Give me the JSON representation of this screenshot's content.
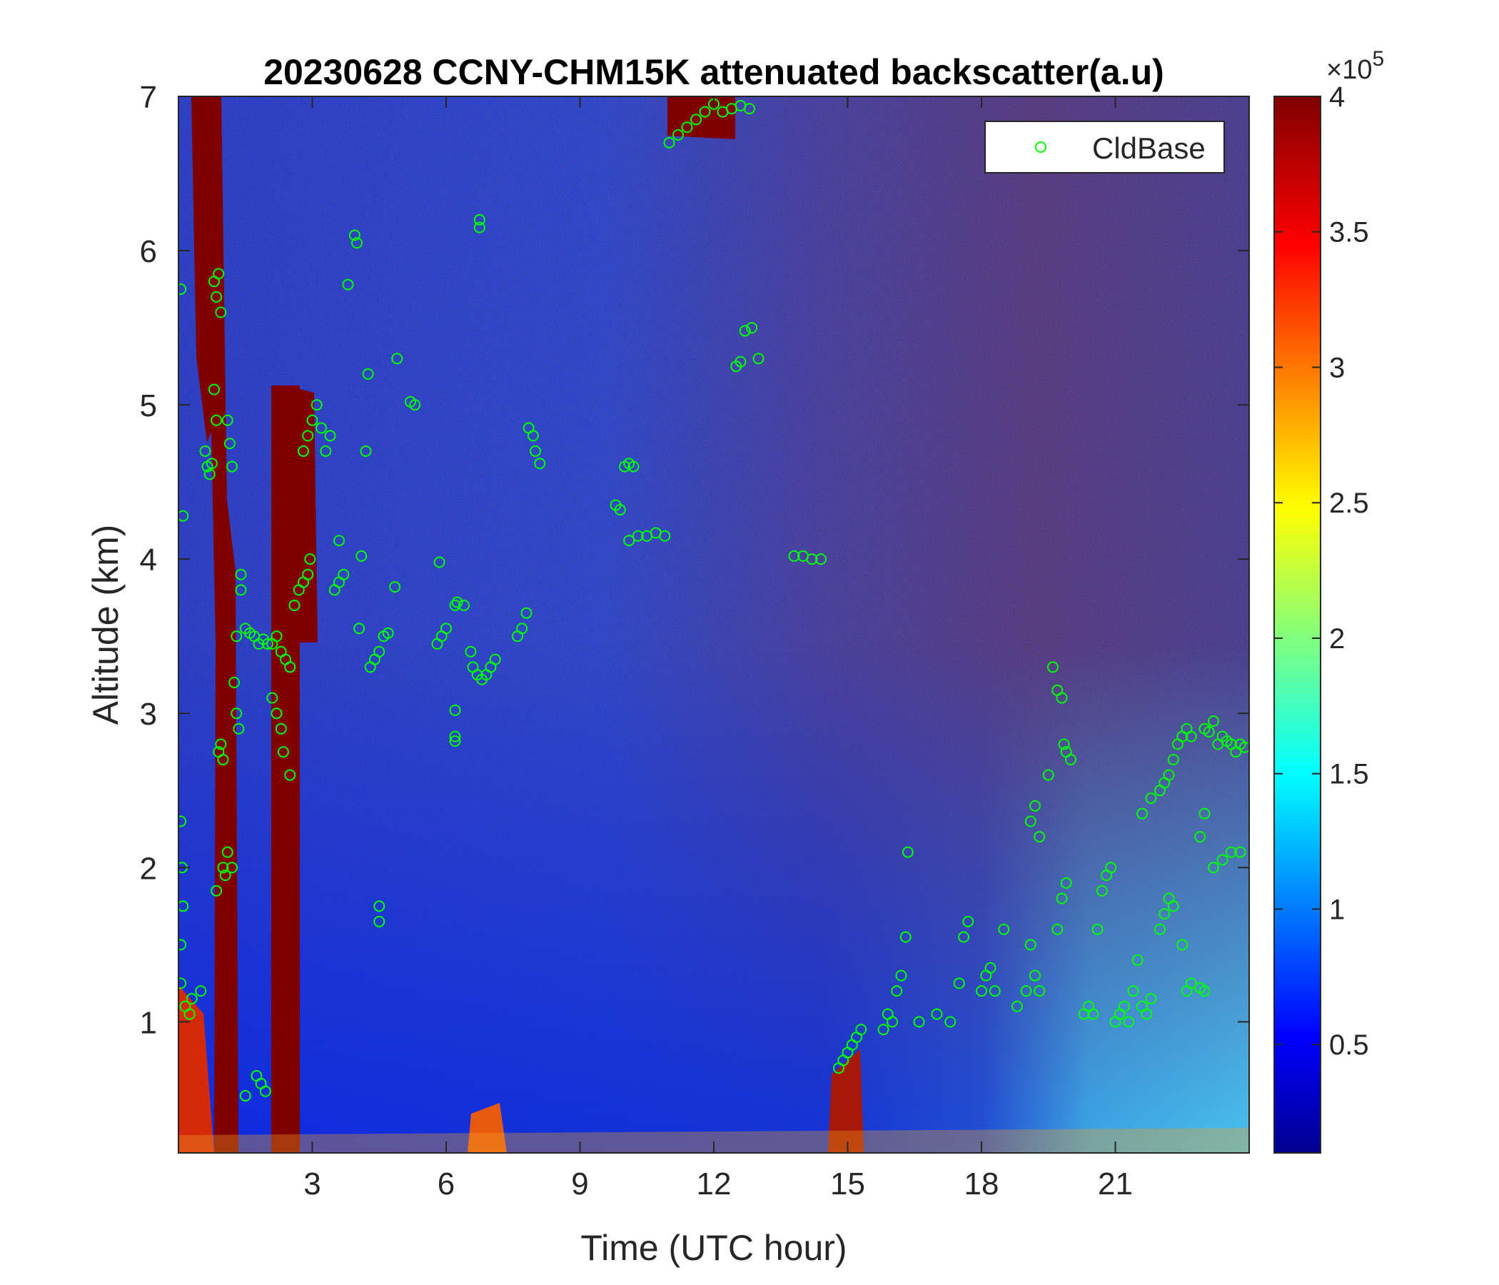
{
  "chart_data": {
    "type": "heatmap",
    "title": "20230628 CCNY-CHM15K attenuated backscatter(a.u)",
    "xlabel": "Time (UTC hour)",
    "ylabel": "Altitude (km)",
    "xlim": [
      0,
      24
    ],
    "ylim": [
      0.15,
      7
    ],
    "xticks": [
      3,
      6,
      9,
      12,
      15,
      18,
      21
    ],
    "xtick_labels": [
      "3",
      "6",
      "9",
      "12",
      "15",
      "18",
      "21"
    ],
    "yticks": [
      1,
      2,
      3,
      4,
      5,
      6,
      7
    ],
    "ytick_labels": [
      "1",
      "2",
      "3",
      "4",
      "5",
      "6",
      "7"
    ],
    "colorbar": {
      "colormap": "jet",
      "range": [
        0.1,
        4
      ],
      "ticks": [
        0.5,
        1,
        1.5,
        2,
        2.5,
        3,
        3.5,
        4
      ],
      "tick_labels": [
        "0.5",
        "1",
        "1.5",
        "2",
        "2.5",
        "3",
        "3.5",
        "4"
      ],
      "exponent_label": "×10",
      "exponent_power": "5"
    },
    "legend": {
      "position": "top-right",
      "entries": [
        {
          "name": "CldBase",
          "marker": "circle",
          "color": "#00ff00"
        }
      ]
    },
    "grid": false,
    "series": [
      {
        "name": "CldBase",
        "type": "scatter",
        "points": [
          [
            0.05,
            5.75
          ],
          [
            0.1,
            4.28
          ],
          [
            0.05,
            2.3
          ],
          [
            0.08,
            2.0
          ],
          [
            0.1,
            1.75
          ],
          [
            0.05,
            1.5
          ],
          [
            0.05,
            1.25
          ],
          [
            0.15,
            1.1
          ],
          [
            0.25,
            1.05
          ],
          [
            0.3,
            1.15
          ],
          [
            0.5,
            1.2
          ],
          [
            0.65,
            4.6
          ],
          [
            0.7,
            4.55
          ],
          [
            0.75,
            4.62
          ],
          [
            0.6,
            4.7
          ],
          [
            0.8,
            5.1
          ],
          [
            0.85,
            4.9
          ],
          [
            0.8,
            5.8
          ],
          [
            0.85,
            5.7
          ],
          [
            0.9,
            5.85
          ],
          [
            0.95,
            5.6
          ],
          [
            0.9,
            2.75
          ],
          [
            0.95,
            2.8
          ],
          [
            1.0,
            2.7
          ],
          [
            0.85,
            1.85
          ],
          [
            1.0,
            2.0
          ],
          [
            1.1,
            2.1
          ],
          [
            1.2,
            2.0
          ],
          [
            1.05,
            1.95
          ],
          [
            1.1,
            4.9
          ],
          [
            1.15,
            4.75
          ],
          [
            1.2,
            4.6
          ],
          [
            1.3,
            3.5
          ],
          [
            1.25,
            3.2
          ],
          [
            1.3,
            3.0
          ],
          [
            1.35,
            2.9
          ],
          [
            1.4,
            3.9
          ],
          [
            1.4,
            3.8
          ],
          [
            1.5,
            3.55
          ],
          [
            1.6,
            3.52
          ],
          [
            1.7,
            3.5
          ],
          [
            1.8,
            3.45
          ],
          [
            1.9,
            3.48
          ],
          [
            2.0,
            3.45
          ],
          [
            2.1,
            3.45
          ],
          [
            2.2,
            3.5
          ],
          [
            2.3,
            3.4
          ],
          [
            2.4,
            3.35
          ],
          [
            2.5,
            3.3
          ],
          [
            2.6,
            3.7
          ],
          [
            2.7,
            3.8
          ],
          [
            2.8,
            3.85
          ],
          [
            2.9,
            3.9
          ],
          [
            2.95,
            4.0
          ],
          [
            2.1,
            3.1
          ],
          [
            2.2,
            3.0
          ],
          [
            2.3,
            2.9
          ],
          [
            2.35,
            2.75
          ],
          [
            2.5,
            2.6
          ],
          [
            1.75,
            0.65
          ],
          [
            1.85,
            0.6
          ],
          [
            1.95,
            0.55
          ],
          [
            1.5,
            0.52
          ],
          [
            2.8,
            4.7
          ],
          [
            2.9,
            4.8
          ],
          [
            3.0,
            4.9
          ],
          [
            3.1,
            5.0
          ],
          [
            3.2,
            4.85
          ],
          [
            3.3,
            4.7
          ],
          [
            3.4,
            4.8
          ],
          [
            3.5,
            3.8
          ],
          [
            3.6,
            3.85
          ],
          [
            3.7,
            3.9
          ],
          [
            3.6,
            4.12
          ],
          [
            3.8,
            5.78
          ],
          [
            3.95,
            6.1
          ],
          [
            4.0,
            6.05
          ],
          [
            4.1,
            4.02
          ],
          [
            4.2,
            4.7
          ],
          [
            4.25,
            5.2
          ],
          [
            4.05,
            3.55
          ],
          [
            4.3,
            3.3
          ],
          [
            4.4,
            3.35
          ],
          [
            4.5,
            3.4
          ],
          [
            4.6,
            3.5
          ],
          [
            4.7,
            3.52
          ],
          [
            4.5,
            1.75
          ],
          [
            4.5,
            1.65
          ],
          [
            4.9,
            5.3
          ],
          [
            4.85,
            3.82
          ],
          [
            5.2,
            5.02
          ],
          [
            5.3,
            5.0
          ],
          [
            5.8,
            3.45
          ],
          [
            5.9,
            3.5
          ],
          [
            6.0,
            3.55
          ],
          [
            5.85,
            3.98
          ],
          [
            6.2,
            3.7
          ],
          [
            6.25,
            3.72
          ],
          [
            6.4,
            3.7
          ],
          [
            6.2,
            3.02
          ],
          [
            6.2,
            2.85
          ],
          [
            6.2,
            2.82
          ],
          [
            6.55,
            3.4
          ],
          [
            6.6,
            3.3
          ],
          [
            6.7,
            3.25
          ],
          [
            6.8,
            3.22
          ],
          [
            6.9,
            3.25
          ],
          [
            7.0,
            3.3
          ],
          [
            7.1,
            3.35
          ],
          [
            6.75,
            6.2
          ],
          [
            6.75,
            6.15
          ],
          [
            7.6,
            3.5
          ],
          [
            7.7,
            3.55
          ],
          [
            7.8,
            3.65
          ],
          [
            7.85,
            4.85
          ],
          [
            7.95,
            4.8
          ],
          [
            8.0,
            4.7
          ],
          [
            8.1,
            4.62
          ],
          [
            9.8,
            4.35
          ],
          [
            9.9,
            4.32
          ],
          [
            10.0,
            4.6
          ],
          [
            10.1,
            4.62
          ],
          [
            10.2,
            4.6
          ],
          [
            10.1,
            4.12
          ],
          [
            10.3,
            4.15
          ],
          [
            10.5,
            4.15
          ],
          [
            10.7,
            4.17
          ],
          [
            10.9,
            4.15
          ],
          [
            11.0,
            6.7
          ],
          [
            11.2,
            6.75
          ],
          [
            11.4,
            6.8
          ],
          [
            11.6,
            6.85
          ],
          [
            11.8,
            6.9
          ],
          [
            12.0,
            6.95
          ],
          [
            12.2,
            6.9
          ],
          [
            12.4,
            6.92
          ],
          [
            12.6,
            6.94
          ],
          [
            12.8,
            6.92
          ],
          [
            12.5,
            5.25
          ],
          [
            12.6,
            5.28
          ],
          [
            12.7,
            5.48
          ],
          [
            12.85,
            5.5
          ],
          [
            13.0,
            5.3
          ],
          [
            13.8,
            4.02
          ],
          [
            14.0,
            4.02
          ],
          [
            14.2,
            4.0
          ],
          [
            14.4,
            4.0
          ],
          [
            14.8,
            0.7
          ],
          [
            14.9,
            0.75
          ],
          [
            15.0,
            0.8
          ],
          [
            15.1,
            0.85
          ],
          [
            15.2,
            0.9
          ],
          [
            15.3,
            0.95
          ],
          [
            15.8,
            0.95
          ],
          [
            15.9,
            1.05
          ],
          [
            16.0,
            1.0
          ],
          [
            16.1,
            1.2
          ],
          [
            16.2,
            1.3
          ],
          [
            16.3,
            1.55
          ],
          [
            16.35,
            2.1
          ],
          [
            16.6,
            1.0
          ],
          [
            17.0,
            1.05
          ],
          [
            17.3,
            1.0
          ],
          [
            17.5,
            1.25
          ],
          [
            17.6,
            1.55
          ],
          [
            17.7,
            1.65
          ],
          [
            18.0,
            1.2
          ],
          [
            18.1,
            1.3
          ],
          [
            18.2,
            1.35
          ],
          [
            18.3,
            1.2
          ],
          [
            18.5,
            1.6
          ],
          [
            18.8,
            1.1
          ],
          [
            19.0,
            1.2
          ],
          [
            19.1,
            1.5
          ],
          [
            19.2,
            1.3
          ],
          [
            19.3,
            1.2
          ],
          [
            19.1,
            2.3
          ],
          [
            19.2,
            2.4
          ],
          [
            19.3,
            2.2
          ],
          [
            19.5,
            2.6
          ],
          [
            19.6,
            3.3
          ],
          [
            19.7,
            3.15
          ],
          [
            19.8,
            3.1
          ],
          [
            19.85,
            2.8
          ],
          [
            19.9,
            2.75
          ],
          [
            20.0,
            2.7
          ],
          [
            19.7,
            1.6
          ],
          [
            19.8,
            1.8
          ],
          [
            19.9,
            1.9
          ],
          [
            20.3,
            1.05
          ],
          [
            20.4,
            1.1
          ],
          [
            20.5,
            1.05
          ],
          [
            20.6,
            1.6
          ],
          [
            20.7,
            1.85
          ],
          [
            20.8,
            1.95
          ],
          [
            20.9,
            2.0
          ],
          [
            21.0,
            1.0
          ],
          [
            21.1,
            1.05
          ],
          [
            21.2,
            1.1
          ],
          [
            21.3,
            1.0
          ],
          [
            21.4,
            1.2
          ],
          [
            21.5,
            1.4
          ],
          [
            21.6,
            1.1
          ],
          [
            21.7,
            1.05
          ],
          [
            21.8,
            1.15
          ],
          [
            21.6,
            2.35
          ],
          [
            21.8,
            2.45
          ],
          [
            22.0,
            2.5
          ],
          [
            22.1,
            2.55
          ],
          [
            22.2,
            2.6
          ],
          [
            22.3,
            2.7
          ],
          [
            22.4,
            2.8
          ],
          [
            22.5,
            2.85
          ],
          [
            22.6,
            2.9
          ],
          [
            22.7,
            2.85
          ],
          [
            22.0,
            1.6
          ],
          [
            22.1,
            1.7
          ],
          [
            22.2,
            1.8
          ],
          [
            22.3,
            1.75
          ],
          [
            22.5,
            1.5
          ],
          [
            22.6,
            1.2
          ],
          [
            22.7,
            1.25
          ],
          [
            22.9,
            1.22
          ],
          [
            23.0,
            1.2
          ],
          [
            23.0,
            2.9
          ],
          [
            23.1,
            2.88
          ],
          [
            23.2,
            2.95
          ],
          [
            23.3,
            2.8
          ],
          [
            23.4,
            2.85
          ],
          [
            23.5,
            2.82
          ],
          [
            23.6,
            2.8
          ],
          [
            23.7,
            2.75
          ],
          [
            23.8,
            2.8
          ],
          [
            23.9,
            2.78
          ],
          [
            23.2,
            2.0
          ],
          [
            23.4,
            2.05
          ],
          [
            23.6,
            2.1
          ],
          [
            23.8,
            2.1
          ],
          [
            22.9,
            2.2
          ],
          [
            23.0,
            2.35
          ]
        ]
      }
    ]
  }
}
